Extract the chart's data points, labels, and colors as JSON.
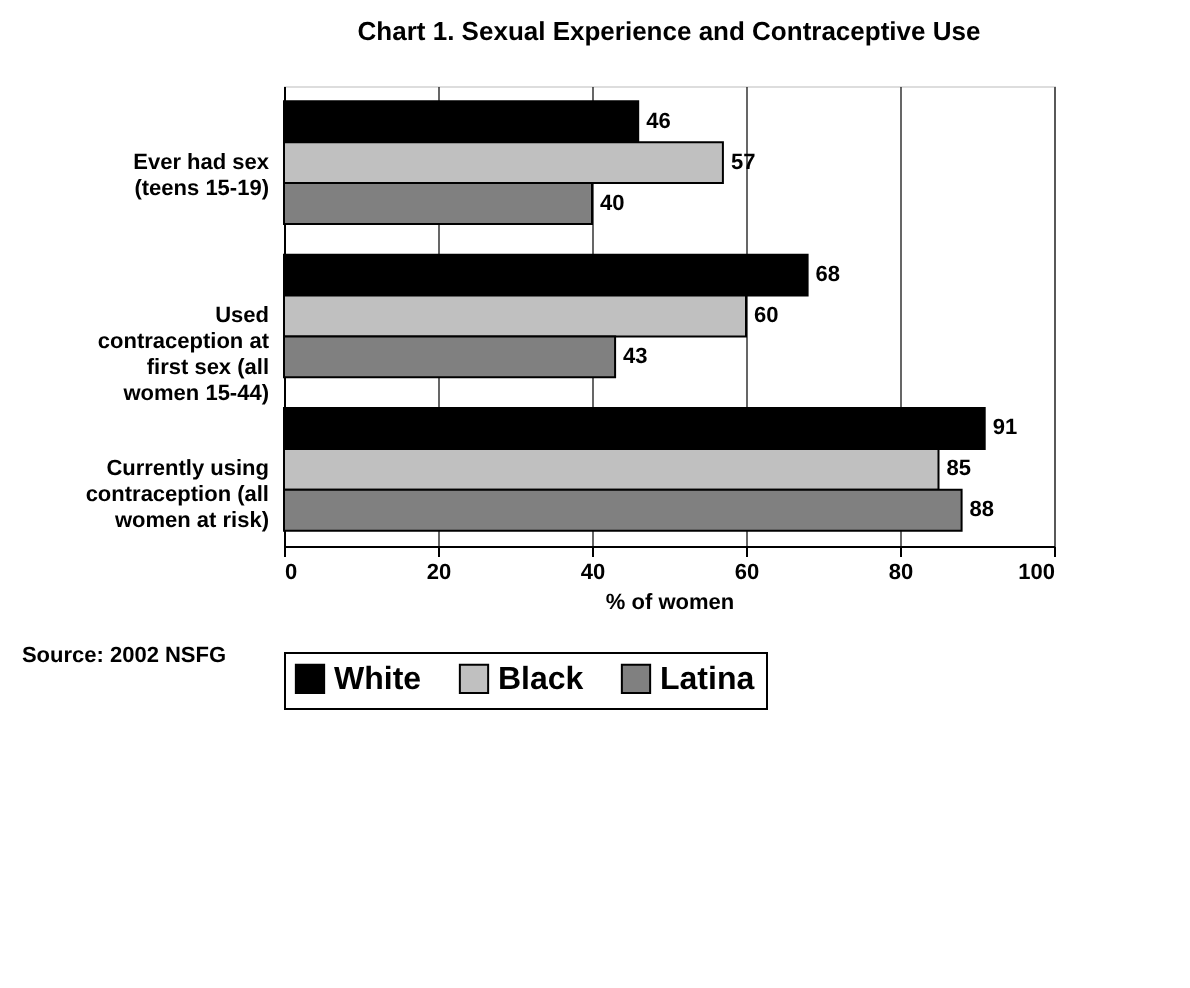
{
  "chart_data": {
    "type": "bar",
    "orientation": "horizontal",
    "title": "Chart 1. Sexual Experience and Contraceptive Use",
    "xlabel": "% of women",
    "categories": [
      "Ever had sex\n(teens 15-19)",
      "Used\ncontraception at\nfirst sex (all\nwomen 15-44)",
      "Currently using\ncontraception (all\nwomen at risk)"
    ],
    "series": [
      {
        "name": "White",
        "color": "#000000",
        "values": [
          46,
          68,
          91
        ]
      },
      {
        "name": "Black",
        "color": "#c0c0c0",
        "values": [
          57,
          60,
          85
        ]
      },
      {
        "name": "Latina",
        "color": "#808080",
        "values": [
          40,
          43,
          88
        ]
      }
    ],
    "xlim": [
      0,
      100
    ],
    "xticks": [
      0,
      20,
      40,
      60,
      80,
      100
    ],
    "grid": "x",
    "data_labels": true,
    "legend": "bottom",
    "annotations": [
      "Source: 2002 NSFG"
    ]
  }
}
